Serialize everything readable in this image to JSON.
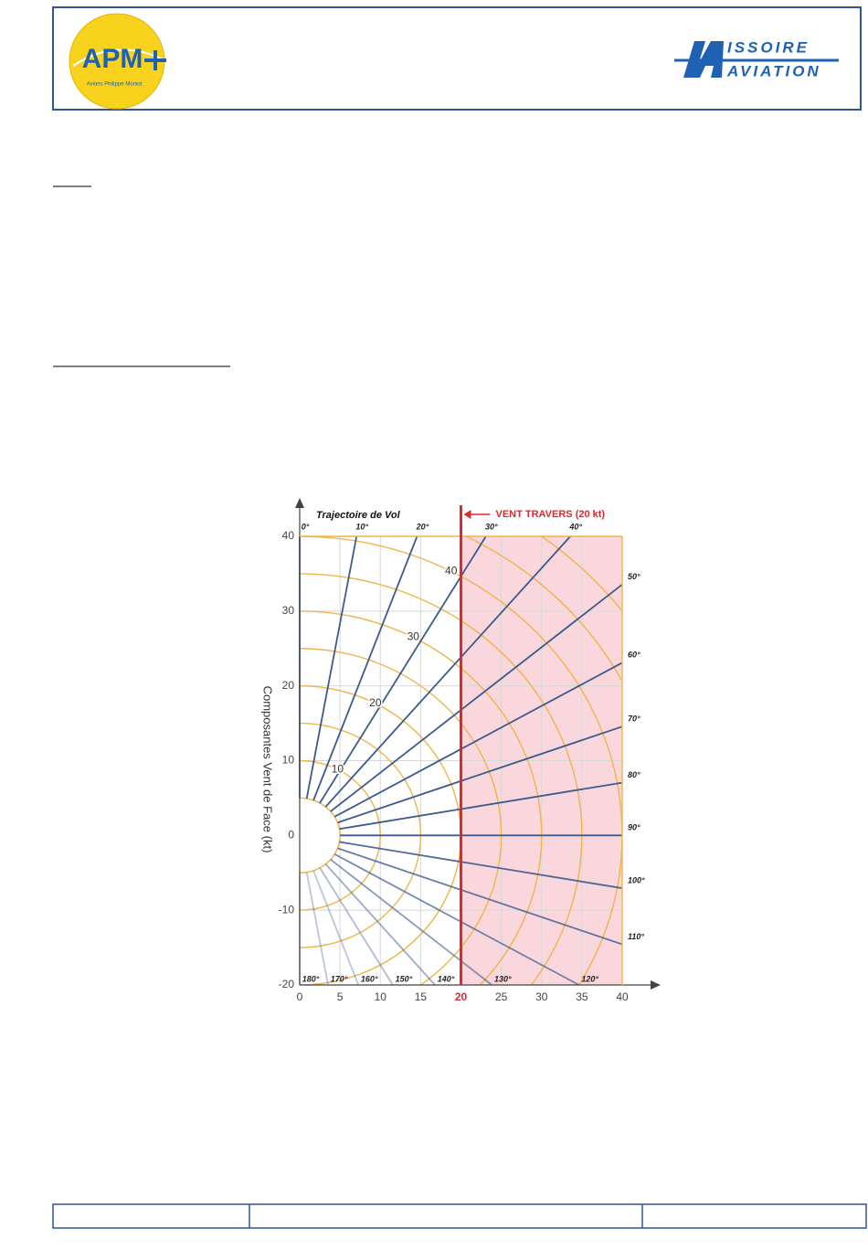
{
  "header": {
    "left_logo": {
      "text": "APM",
      "subtitle": "Avions Philippe Moniot"
    },
    "right_logo": {
      "line1": "ISSOIRE",
      "line2": "AVIATION"
    }
  },
  "chart_data": {
    "type": "wind-polar",
    "title": "Trajectoire de Vol",
    "ylabel": "Composantes  Vent de Face (kt)",
    "annotation": "VENT TRAVERS (20 kt)",
    "crosswind": 20,
    "xlim": [
      0,
      40
    ],
    "ylim": [
      -20,
      40
    ],
    "xticks": [
      0,
      5,
      10,
      15,
      20,
      25,
      30,
      35,
      40
    ],
    "yticks": [
      -20,
      -10,
      0,
      10,
      20,
      30,
      40
    ],
    "circles": [
      5,
      10,
      15,
      20,
      25,
      30,
      35,
      40,
      45,
      50
    ],
    "circle_labels": [
      10,
      20,
      30,
      40
    ],
    "line_color": "#3b5b8e",
    "circle_color": "#f0b44c",
    "zone_color": "#f9d7dc",
    "crosswind_color": "#e0262e",
    "directions": [
      {
        "value": 0,
        "label": "0°"
      },
      {
        "value": 10,
        "label": "10°"
      },
      {
        "value": 20,
        "label": "20°"
      },
      {
        "value": 30,
        "label": "30°"
      },
      {
        "value": 40,
        "label": "40°"
      },
      {
        "value": 50,
        "label": "50°"
      },
      {
        "value": 60,
        "label": "60°"
      },
      {
        "value": 70,
        "label": "70°"
      },
      {
        "value": 80,
        "label": "80°"
      },
      {
        "value": 90,
        "label": "90°"
      },
      {
        "value": 100,
        "label": "100°"
      },
      {
        "value": 110,
        "label": "110°"
      },
      {
        "value": 120,
        "label": "120°"
      },
      {
        "value": 130,
        "label": "130°"
      },
      {
        "value": 140,
        "label": "140°"
      },
      {
        "value": 150,
        "label": "150°"
      },
      {
        "value": 160,
        "label": "160°"
      },
      {
        "value": 170,
        "label": "170°"
      },
      {
        "value": 180,
        "label": "180°"
      }
    ]
  }
}
